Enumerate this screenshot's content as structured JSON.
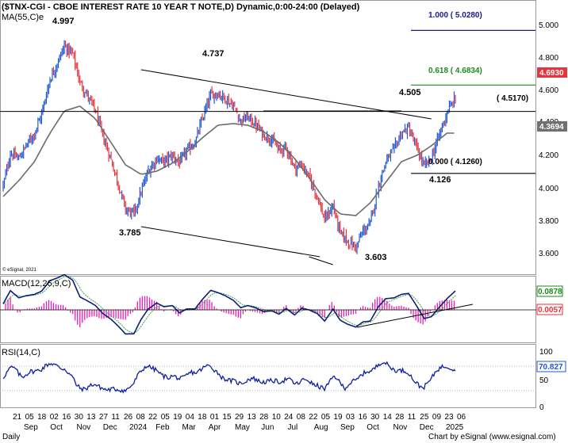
{
  "chart_data": [
    {
      "type": "candlestick",
      "panel": "price",
      "title": "($TNX-CGI - CBOE INTEREST RATE 10 YEAR T NOTE,D) Dynamic,0:00-24:00 (Delayed)",
      "indicator_label": "MA(55,C)e",
      "copyright": "© eSignal, 2021",
      "ylim": [
        3.5,
        5.2
      ],
      "yticks": [
        "5.000",
        "4.800",
        "4.600",
        "4.400",
        "4.200",
        "4.000",
        "3.800",
        "3.600"
      ],
      "last_price_tag": "4.6930",
      "ma_tag": "4.3694",
      "colors": {
        "up": "#1f57d6",
        "down": "#e8323c",
        "ma": "#6b6b6b",
        "trend": "#000000",
        "fib_low": "#000000",
        "fib_618": "#1f8a1f",
        "fib_100": "#1a1a8c",
        "last_tag": "#e8323c",
        "ma_tag": "#707070"
      },
      "fib_levels": [
        {
          "label": "0.000 ( 4.1260)",
          "value": 4.126
        },
        {
          "label": "0.618 ( 4.6834)",
          "value": 4.6834
        },
        {
          "label": "1.000 ( 5.0280)",
          "value": 5.028
        }
      ],
      "horizontal_level": {
        "label": "( 4.5170)",
        "value": 4.517
      },
      "annotations": [
        {
          "text": "4.997",
          "value": 4.997
        },
        {
          "text": "4.737",
          "value": 4.737
        },
        {
          "text": "3.785",
          "value": 3.785
        },
        {
          "text": "3.603",
          "value": 3.603
        },
        {
          "text": "4.505",
          "value": 4.505
        },
        {
          "text": "4.126",
          "value": 4.126
        }
      ],
      "close_path": [
        [
          0,
          4.05
        ],
        [
          6,
          4.25
        ],
        [
          13,
          4.22
        ],
        [
          19,
          4.3
        ],
        [
          26,
          4.38
        ],
        [
          32,
          4.5
        ],
        [
          39,
          4.72
        ],
        [
          45,
          4.82
        ],
        [
          51,
          4.93
        ],
        [
          58,
          4.88
        ],
        [
          64,
          4.7
        ],
        [
          70,
          4.62
        ],
        [
          77,
          4.52
        ],
        [
          83,
          4.36
        ],
        [
          90,
          4.21
        ],
        [
          96,
          4.06
        ],
        [
          102,
          3.9
        ],
        [
          109,
          3.87
        ],
        [
          115,
          4.01
        ],
        [
          121,
          4.14
        ],
        [
          128,
          4.22
        ],
        [
          134,
          4.2
        ],
        [
          141,
          4.24
        ],
        [
          147,
          4.19
        ],
        [
          153,
          4.27
        ],
        [
          160,
          4.32
        ],
        [
          166,
          4.47
        ],
        [
          173,
          4.62
        ],
        [
          179,
          4.63
        ],
        [
          185,
          4.6
        ],
        [
          192,
          4.55
        ],
        [
          198,
          4.46
        ],
        [
          204,
          4.48
        ],
        [
          211,
          4.43
        ],
        [
          217,
          4.37
        ],
        [
          224,
          4.34
        ],
        [
          230,
          4.27
        ],
        [
          236,
          4.29
        ],
        [
          243,
          4.16
        ],
        [
          249,
          4.18
        ],
        [
          255,
          4.1
        ],
        [
          262,
          3.98
        ],
        [
          268,
          3.83
        ],
        [
          275,
          3.92
        ],
        [
          281,
          3.75
        ],
        [
          287,
          3.7
        ],
        [
          294,
          3.66
        ],
        [
          300,
          3.76
        ],
        [
          306,
          3.81
        ],
        [
          313,
          4.05
        ],
        [
          319,
          4.2
        ],
        [
          326,
          4.28
        ],
        [
          332,
          4.38
        ],
        [
          338,
          4.41
        ],
        [
          345,
          4.28
        ],
        [
          351,
          4.17
        ],
        [
          357,
          4.22
        ],
        [
          364,
          4.38
        ],
        [
          370,
          4.51
        ],
        [
          377,
          4.6
        ]
      ],
      "ma_path": [
        [
          0,
          3.98
        ],
        [
          13,
          4.08
        ],
        [
          26,
          4.2
        ],
        [
          39,
          4.38
        ],
        [
          51,
          4.52
        ],
        [
          64,
          4.55
        ],
        [
          77,
          4.47
        ],
        [
          90,
          4.32
        ],
        [
          102,
          4.18
        ],
        [
          115,
          4.12
        ],
        [
          128,
          4.14
        ],
        [
          141,
          4.19
        ],
        [
          153,
          4.26
        ],
        [
          166,
          4.35
        ],
        [
          179,
          4.43
        ],
        [
          192,
          4.44
        ],
        [
          204,
          4.43
        ],
        [
          217,
          4.39
        ],
        [
          230,
          4.32
        ],
        [
          243,
          4.22
        ],
        [
          255,
          4.1
        ],
        [
          268,
          3.96
        ],
        [
          281,
          3.87
        ],
        [
          294,
          3.86
        ],
        [
          306,
          3.94
        ],
        [
          319,
          4.07
        ],
        [
          332,
          4.2
        ],
        [
          345,
          4.24
        ],
        [
          357,
          4.3
        ],
        [
          370,
          4.38
        ]
      ],
      "trendlines": [
        {
          "from": [
            115,
            3.79
          ],
          "to": [
            264,
            3.6
          ]
        },
        {
          "from": [
            115,
            4.78
          ],
          "to": [
            357,
            4.47
          ]
        },
        {
          "from": [
            217,
            4.52
          ],
          "to": [
            332,
            4.52
          ]
        },
        {
          "from": [
            255,
            3.6
          ],
          "to": [
            275,
            3.55
          ]
        }
      ]
    },
    {
      "type": "line",
      "panel": "MACD",
      "label": "MACD(12,26,9,C)",
      "ylim": [
        -0.22,
        0.17
      ],
      "tags": [
        "0.0878",
        "0.0057"
      ],
      "colors": {
        "macd": "#0d1f7a",
        "signal": "#43a047",
        "histogram": "#e91eb5",
        "tag_macd": "#1a8a1a",
        "tag_hist": "#e8323c"
      }
    },
    {
      "type": "line",
      "panel": "RSI",
      "label": "RSI(14,C)",
      "ylim": [
        0,
        100
      ],
      "yticks": [
        "100",
        "50",
        "0"
      ],
      "last_tag": "70.827",
      "colors": {
        "rsi": "#0d1fa0",
        "tag": "#1f57d6"
      }
    }
  ],
  "x_axis": {
    "day_labels": [
      "21",
      "05",
      "18",
      "02",
      "16",
      "30",
      "13",
      "27",
      "11",
      "26",
      "08",
      "22",
      "05",
      "19",
      "04",
      "18",
      "01",
      "15",
      "29",
      "13",
      "28",
      "10",
      "24",
      "08",
      "22",
      "05",
      "19",
      "03",
      "16",
      "30",
      "14",
      "28",
      "11",
      "25",
      "09",
      "23",
      "06"
    ],
    "month_labels": [
      "Sep",
      "Oct",
      "Nov",
      "Dec",
      "2024",
      "Feb",
      "Mar",
      "Apr",
      "May",
      "Jun",
      "Jul",
      "Aug",
      "Sep",
      "Oct",
      "Nov",
      "Dec",
      "2025"
    ]
  },
  "footer": {
    "left": "Daily",
    "right": "Chart by eSignal (www.esignal.com)"
  }
}
